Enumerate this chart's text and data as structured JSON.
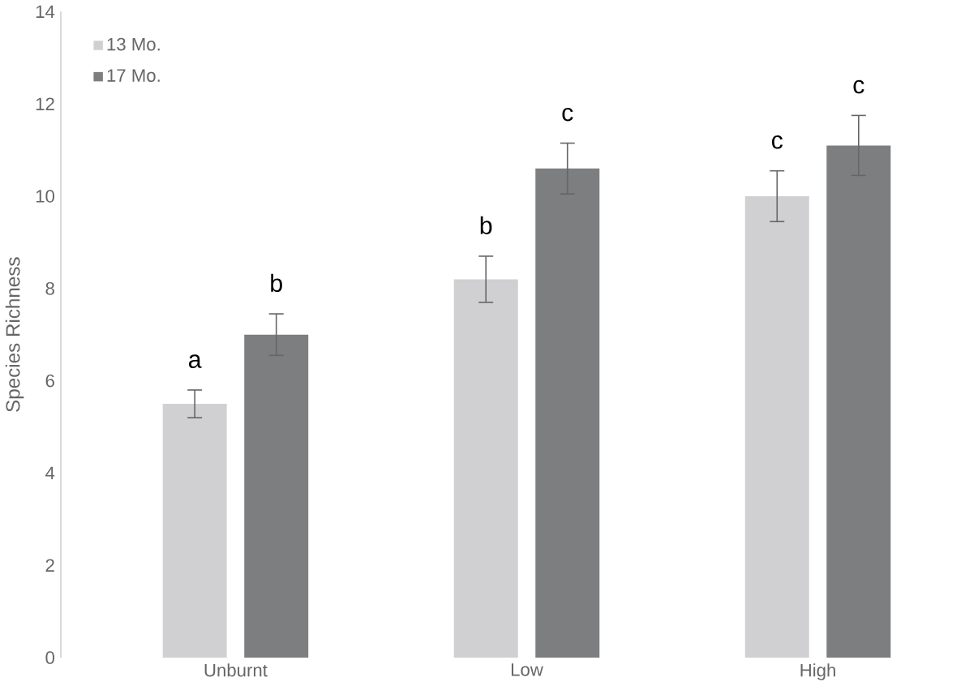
{
  "chart_data": {
    "type": "bar",
    "ylabel": "Species Richness",
    "categories": [
      "Unburnt",
      "Low",
      "High"
    ],
    "series": [
      {
        "name": "13 Mo.",
        "color": "#d0d0d2",
        "values": [
          5.5,
          8.2,
          10.0
        ],
        "errors": [
          0.3,
          0.5,
          0.55
        ]
      },
      {
        "name": "17 Mo.",
        "color": "#7d7e80",
        "values": [
          7.0,
          10.6,
          11.1
        ],
        "errors": [
          0.45,
          0.55,
          0.65
        ]
      }
    ],
    "ylim": [
      0,
      14
    ],
    "yticks": [
      0,
      2,
      4,
      6,
      8,
      10,
      12,
      14
    ],
    "legend": "top left",
    "annotations": [
      "a",
      "b",
      "b",
      "c",
      "c",
      "c"
    ]
  }
}
